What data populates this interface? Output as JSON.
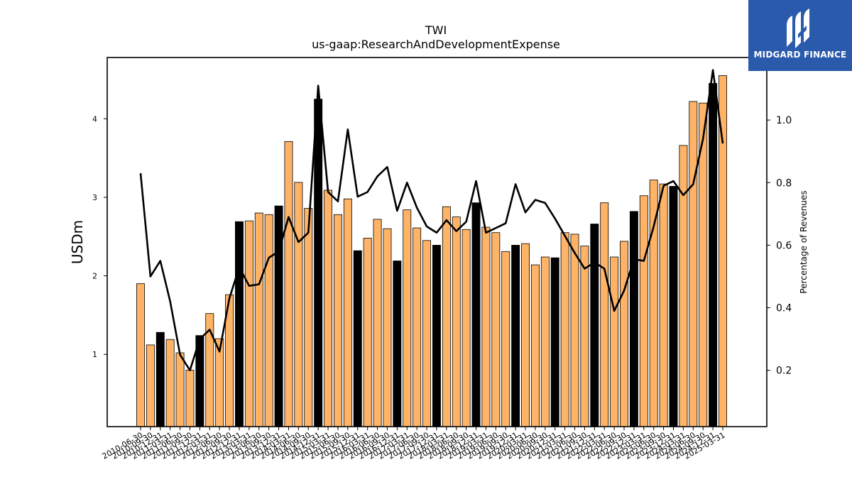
{
  "brand": {
    "name": "MIDGARD FINANCE",
    "bg_color": "#2a5aab"
  },
  "chart_data": {
    "type": "bar",
    "title": "TWI",
    "subtitle": "us-gaap:ResearchAndDevelopmentExpense",
    "ylabel": "USDm",
    "y2label": "Percentage of Revenues",
    "ylim": [
      0.08,
      4.78
    ],
    "y2lim": [
      0.02,
      1.2
    ],
    "yticks": [
      1,
      2,
      3,
      4
    ],
    "y2ticks": [
      0.2,
      0.4,
      0.6,
      0.8,
      1.0
    ],
    "colors": {
      "bar": "#ffb366",
      "bar_q4": "#000000",
      "line": "#000000"
    },
    "categories": [
      "2010-06-30",
      "2010-09-30",
      "2010-12-31",
      "2011-03-31",
      "2011-06-30",
      "2011-09-30",
      "2011-12-31",
      "2012-03-31",
      "2012-06-30",
      "2012-09-30",
      "2012-12-31",
      "2013-03-31",
      "2013-06-30",
      "2013-09-30",
      "2013-12-31",
      "2014-03-31",
      "2014-06-30",
      "2014-09-30",
      "2014-12-31",
      "2015-03-31",
      "2015-06-30",
      "2015-09-30",
      "2015-12-31",
      "2016-03-31",
      "2016-06-30",
      "2016-09-30",
      "2016-12-31",
      "2017-03-31",
      "2017-06-30",
      "2017-09-30",
      "2017-12-31",
      "2018-03-31",
      "2018-06-30",
      "2018-09-30",
      "2018-12-31",
      "2019-03-31",
      "2019-06-30",
      "2019-09-30",
      "2019-12-31",
      "2020-03-31",
      "2020-06-30",
      "2020-09-30",
      "2020-12-31",
      "2021-03-31",
      "2021-06-30",
      "2021-09-30",
      "2021-12-31",
      "2022-03-31",
      "2022-06-30",
      "2022-09-30",
      "2022-12-31",
      "2023-03-31",
      "2023-06-30",
      "2023-09-30",
      "2023-12-31",
      "2024-03-31",
      "2024-06-30",
      "2024-09-30",
      "2024-12-31",
      "2025-03-31"
    ],
    "series": [
      {
        "kind": "bar",
        "values": [
          1.9,
          1.12,
          1.28,
          1.19,
          1.02,
          0.8,
          1.24,
          1.52,
          1.2,
          1.76,
          2.69,
          2.7,
          2.8,
          2.78,
          2.89,
          3.71,
          3.19,
          2.86,
          4.25,
          3.09,
          2.78,
          2.98,
          2.32,
          2.48,
          2.72,
          2.6,
          2.19,
          2.84,
          2.61,
          2.45,
          2.39,
          2.88,
          2.75,
          2.59,
          2.93,
          2.62,
          2.55,
          2.31,
          2.39,
          2.41,
          2.14,
          2.24,
          2.23,
          2.55,
          2.53,
          2.38,
          2.66,
          2.93,
          2.24,
          2.44,
          2.82,
          3.02,
          3.22,
          3.17,
          3.14,
          3.66,
          4.22,
          4.2,
          4.45,
          4.55
        ]
      },
      {
        "kind": "line",
        "values": [
          0.83,
          0.5,
          0.55,
          0.42,
          0.25,
          0.2,
          0.3,
          0.33,
          0.26,
          0.43,
          0.53,
          0.47,
          0.475,
          0.56,
          0.58,
          0.69,
          0.61,
          0.64,
          1.11,
          0.77,
          0.74,
          0.97,
          0.755,
          0.77,
          0.82,
          0.85,
          0.71,
          0.8,
          0.72,
          0.66,
          0.64,
          0.68,
          0.645,
          0.675,
          0.805,
          0.64,
          0.655,
          0.67,
          0.795,
          0.705,
          0.745,
          0.735,
          0.685,
          0.63,
          0.575,
          0.525,
          0.545,
          0.525,
          0.39,
          0.455,
          0.555,
          0.55,
          0.66,
          0.79,
          0.805,
          0.76,
          0.795,
          0.94,
          1.16,
          0.925
        ]
      }
    ]
  }
}
